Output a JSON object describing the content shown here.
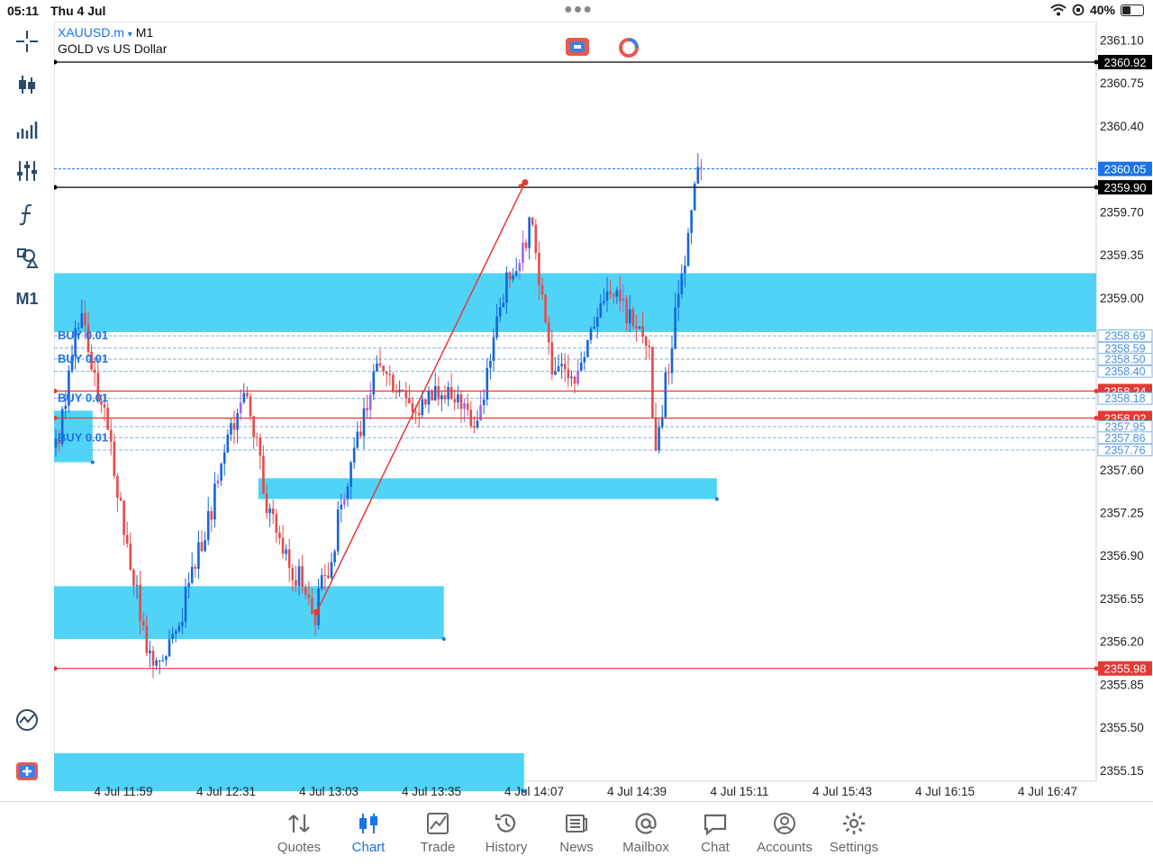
{
  "status": {
    "time": "05:11",
    "date": "Thu 4 Jul",
    "battery": "40%",
    "battery_level": 0.4
  },
  "symbol": {
    "name": "XAUUSD.m",
    "caret": "▾",
    "timeframe": "M1",
    "description": "GOLD vs US Dollar"
  },
  "left_toolbar": {
    "items": [
      "crosshair-icon",
      "candlestick-icon",
      "indicators-icon",
      "settings-sliders-icon",
      "function-icon",
      "objects-icon"
    ],
    "timeframe": "M1",
    "bottom_items": [
      "quick-chart-icon",
      "one-click-trade-icon"
    ]
  },
  "chart_data": {
    "type": "candlestick",
    "symbol": "XAUUSD.m",
    "timeframe": "M1",
    "y_axis": {
      "min": 2354.9,
      "max": 2361.25,
      "ticks": [
        "2361.10",
        "2360.75",
        "2360.40",
        "2359.70",
        "2359.35",
        "2359.00",
        "2357.60",
        "2357.25",
        "2356.90",
        "2356.55",
        "2356.20",
        "2355.85",
        "2355.50",
        "2355.15"
      ]
    },
    "x_axis": {
      "ticks": [
        "4 Jul 11:59",
        "4 Jul 12:31",
        "4 Jul 13:03",
        "4 Jul 13:35",
        "4 Jul 14:07",
        "4 Jul 14:39",
        "4 Jul 15:11",
        "4 Jul 15:43",
        "4 Jul 16:15",
        "4 Jul 16:47"
      ]
    },
    "horizontal_lines": [
      {
        "price": 2360.92,
        "label": "2360.92",
        "color": "#000000",
        "style": "solid"
      },
      {
        "price": 2359.9,
        "label": "2359.90",
        "color": "#000000",
        "style": "solid"
      },
      {
        "price": 2360.05,
        "label": "2360.05",
        "color": "#1a73e8",
        "style": "dotted"
      },
      {
        "price": 2358.24,
        "label": "2358.24",
        "color": "#e53935",
        "style": "solid"
      },
      {
        "price": 2358.02,
        "label": "2358.02",
        "color": "#e53935",
        "style": "solid"
      },
      {
        "price": 2355.98,
        "label": "2355.98",
        "color": "#e53935",
        "style": "solid"
      }
    ],
    "order_levels": [
      {
        "price": 2358.69,
        "label": "2358.69"
      },
      {
        "price": 2358.59,
        "label": "2358.59"
      },
      {
        "price": 2358.5,
        "label": "2358.50"
      },
      {
        "price": 2358.4,
        "label": "2358.40"
      },
      {
        "price": 2358.18,
        "label": "2358.18"
      },
      {
        "price": 2357.95,
        "label": "2357.95"
      },
      {
        "price": 2357.86,
        "label": "2357.86"
      },
      {
        "price": 2357.76,
        "label": "2357.76"
      }
    ],
    "order_tags": [
      "BUY 0.01",
      "BUY 0.01",
      "BUY 0.01",
      "BUY 0.01"
    ],
    "zones": [
      {
        "price_top": 2359.2,
        "price_bottom": 2358.72,
        "start_frac": 0.0,
        "end_frac": 1.0
      },
      {
        "price_top": 2358.08,
        "price_bottom": 2357.66,
        "start_frac": 0.0,
        "end_frac": 0.037
      },
      {
        "price_top": 2357.53,
        "price_bottom": 2357.36,
        "start_frac": 0.196,
        "end_frac": 0.636
      },
      {
        "price_top": 2356.65,
        "price_bottom": 2356.22,
        "start_frac": 0.0,
        "end_frac": 0.374
      },
      {
        "price_top": 2355.29,
        "price_bottom": 2354.98,
        "start_frac": 0.0,
        "end_frac": 0.451
      }
    ],
    "trendline": {
      "from": {
        "x_frac": 0.252,
        "price": 2356.44
      },
      "to": {
        "x_frac": 0.452,
        "price": 2359.94
      },
      "color": "#e53935"
    },
    "candle_seed": 20240704
  },
  "tabs": [
    {
      "id": "quotes",
      "label": "Quotes",
      "icon": "quotes-icon"
    },
    {
      "id": "chart",
      "label": "Chart",
      "icon": "chart-icon",
      "active": true
    },
    {
      "id": "trade",
      "label": "Trade",
      "icon": "trade-icon"
    },
    {
      "id": "history",
      "label": "History",
      "icon": "history-icon"
    },
    {
      "id": "news",
      "label": "News",
      "icon": "news-icon"
    },
    {
      "id": "mailbox",
      "label": "Mailbox",
      "icon": "mailbox-icon"
    },
    {
      "id": "chat",
      "label": "Chat",
      "icon": "chat-icon"
    },
    {
      "id": "accounts",
      "label": "Accounts",
      "icon": "accounts-icon"
    },
    {
      "id": "settings",
      "label": "Settings",
      "icon": "settings-icon"
    }
  ],
  "colors": {
    "accent": "#1a73e8",
    "bull": "#1565d8",
    "bear": "#e54b4b",
    "zone": "#4fd3f7",
    "order_line": "#7fb3e8"
  }
}
